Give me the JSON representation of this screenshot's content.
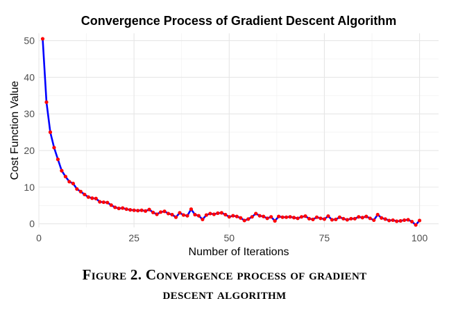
{
  "chart_data": {
    "type": "line",
    "title": "Convergence Process of Gradient Descent Algorithm",
    "xlabel": "Number of Iterations",
    "ylabel": "Cost Function Value",
    "xlim": [
      0,
      105
    ],
    "ylim": [
      -1,
      52
    ],
    "x_ticks": [
      0,
      25,
      50,
      75,
      100
    ],
    "y_ticks": [
      0,
      10,
      20,
      30,
      40,
      50
    ],
    "grid": true,
    "line_color": "#0000ff",
    "point_color": "#ff0000",
    "series": [
      {
        "x": [
          1,
          2,
          3,
          4,
          5,
          6,
          7,
          8,
          9,
          10,
          11,
          12,
          13,
          14,
          15,
          16,
          17,
          18,
          19,
          20,
          21,
          22,
          23,
          24,
          25,
          26,
          27,
          28,
          29,
          30,
          31,
          32,
          33,
          34,
          35,
          36,
          37,
          38,
          39,
          40,
          41,
          42,
          43,
          44,
          45,
          46,
          47,
          48,
          49,
          50,
          51,
          52,
          53,
          54,
          55,
          56,
          57,
          58,
          59,
          60,
          61,
          62,
          63,
          64,
          65,
          66,
          67,
          68,
          69,
          70,
          71,
          72,
          73,
          74,
          75,
          76,
          77,
          78,
          79,
          80,
          81,
          82,
          83,
          84,
          85,
          86,
          87,
          88,
          89,
          90,
          91,
          92,
          93,
          94,
          95,
          96,
          97,
          98,
          99,
          100
        ],
        "values": [
          50.5,
          33.2,
          25.0,
          20.8,
          17.6,
          14.5,
          12.9,
          11.5,
          11.0,
          9.5,
          8.8,
          8.0,
          7.3,
          7.0,
          6.9,
          6.0,
          5.9,
          5.8,
          5.1,
          4.5,
          4.2,
          4.3,
          4.0,
          3.8,
          3.7,
          3.6,
          3.7,
          3.5,
          3.9,
          3.1,
          2.6,
          3.2,
          3.4,
          2.8,
          2.5,
          1.8,
          3.0,
          2.4,
          2.2,
          4.0,
          2.5,
          2.2,
          1.2,
          2.4,
          2.8,
          2.6,
          2.9,
          3.0,
          2.5,
          1.9,
          2.2,
          2.0,
          1.6,
          0.9,
          1.3,
          1.9,
          2.8,
          2.2,
          2.0,
          1.5,
          1.9,
          0.8,
          2.0,
          1.8,
          1.8,
          1.9,
          1.7,
          1.5,
          1.9,
          2.1,
          1.4,
          1.2,
          1.8,
          1.5,
          1.3,
          2.1,
          1.1,
          1.2,
          1.8,
          1.4,
          1.1,
          1.4,
          1.4,
          1.9,
          1.7,
          2.0,
          1.5,
          1.0,
          2.5,
          1.6,
          1.3,
          0.9,
          1.0,
          0.7,
          0.8,
          1.0,
          1.1,
          0.6,
          -0.3,
          0.9
        ]
      }
    ]
  },
  "caption": {
    "line1": "Figure 2. Convergence process of gradient",
    "line2": "descent algorithm"
  }
}
